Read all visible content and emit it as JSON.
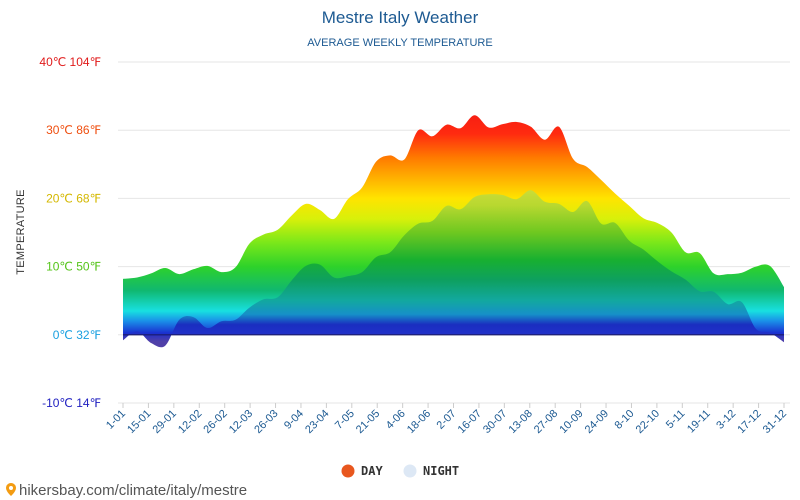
{
  "chart_data": {
    "type": "area",
    "title": "Mestre Italy Weather",
    "subtitle": "AVERAGE WEEKLY TEMPERATURE",
    "ylabel": "TEMPERATURE",
    "ylim": [
      -10,
      40
    ],
    "y_ticks": [
      {
        "value": 40,
        "label": "40℃ 104℉"
      },
      {
        "value": 30,
        "label": "30℃ 86℉"
      },
      {
        "value": 20,
        "label": "20℃ 68℉"
      },
      {
        "value": 10,
        "label": "10℃ 50℉"
      },
      {
        "value": 0,
        "label": "0℃ 32℉"
      },
      {
        "value": -10,
        "label": "-10℃ 14℉"
      }
    ],
    "x_tick_labels": [
      "1-01",
      "15-01",
      "29-01",
      "12-02",
      "26-02",
      "12-03",
      "26-03",
      "9-04",
      "23-04",
      "7-05",
      "21-05",
      "4-06",
      "18-06",
      "2-07",
      "16-07",
      "30-07",
      "13-08",
      "27-08",
      "10-09",
      "24-09",
      "8-10",
      "22-10",
      "5-11",
      "19-11",
      "3-12",
      "17-12",
      "31-12"
    ],
    "grid": "horizontal",
    "legend_position": "bottom",
    "series": [
      {
        "name": "DAY",
        "color": "#e8571e",
        "values": [
          8.2,
          8.4,
          9.0,
          9.8,
          8.9,
          9.6,
          10.1,
          9.2,
          9.9,
          13.4,
          14.7,
          15.4,
          17.5,
          19.2,
          18.3,
          17.0,
          19.9,
          21.6,
          25.4,
          26.3,
          25.7,
          30.0,
          29.1,
          30.8,
          30.3,
          32.2,
          30.4,
          30.9,
          31.2,
          30.5,
          28.6,
          30.5,
          25.8,
          24.6,
          22.7,
          20.7,
          18.9,
          17.1,
          16.4,
          15.0,
          12.1,
          12.0,
          9.0,
          8.9,
          9.1,
          10.0,
          10.1,
          7.0
        ]
      },
      {
        "name": "NIGHT",
        "color": "#dde8f5",
        "values": [
          -0.8,
          0.5,
          -1.2,
          -1.6,
          2.2,
          2.6,
          1.0,
          2.0,
          2.2,
          4.0,
          5.2,
          5.5,
          8.0,
          10.1,
          10.3,
          8.4,
          8.6,
          9.2,
          11.4,
          12.1,
          14.6,
          16.3,
          16.7,
          18.9,
          18.4,
          20.2,
          20.6,
          20.5,
          19.9,
          21.2,
          19.5,
          19.2,
          18.0,
          19.6,
          16.3,
          16.4,
          13.8,
          12.5,
          10.8,
          9.3,
          8.1,
          6.4,
          6.3,
          4.5,
          4.8,
          0.9,
          0.3,
          -1.1
        ]
      }
    ]
  },
  "legend": {
    "day_label": "DAY",
    "night_label": "NIGHT",
    "day_color": "#e8571e",
    "night_color": "#dde8f5"
  },
  "footer": {
    "site_text": "hikersbay.com/climate/italy/mestre",
    "pin_icon": "location-pin-icon"
  }
}
